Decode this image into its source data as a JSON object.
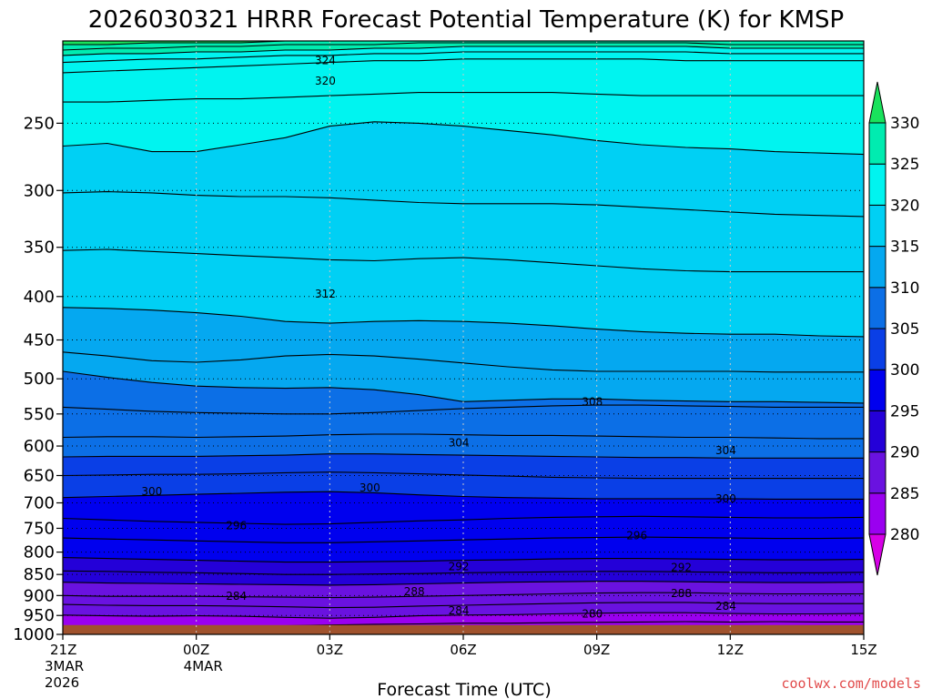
{
  "chart_data": {
    "type": "contour",
    "title": "2026030321 HRRR Forecast Potential Temperature (K) for KMSP",
    "xlabel": "Forecast Time (UTC)",
    "credit": "coolwx.com/models",
    "x_ticks": [
      {
        "hour": 0,
        "label": "21Z",
        "sub": [
          "3MAR",
          "2026"
        ]
      },
      {
        "hour": 3,
        "label": "00Z",
        "sub": [
          "4MAR"
        ]
      },
      {
        "hour": 6,
        "label": "03Z",
        "sub": []
      },
      {
        "hour": 9,
        "label": "06Z",
        "sub": []
      },
      {
        "hour": 12,
        "label": "09Z",
        "sub": []
      },
      {
        "hour": 15,
        "label": "12Z",
        "sub": []
      },
      {
        "hour": 18,
        "label": "15Z",
        "sub": []
      }
    ],
    "xlim": [
      0,
      18
    ],
    "ylim": [
      1000,
      200
    ],
    "y_ticks": [
      250,
      300,
      350,
      400,
      450,
      500,
      550,
      600,
      650,
      700,
      750,
      800,
      850,
      900,
      950,
      1000
    ],
    "colorbar": {
      "levels": [
        280,
        285,
        290,
        295,
        300,
        305,
        310,
        315,
        320,
        325,
        330
      ],
      "labels": [
        "280",
        "285",
        "290",
        "295",
        "300",
        "305",
        "310",
        "315",
        "320",
        "325",
        "330"
      ],
      "colors": [
        "#d600e6",
        "#9a00f0",
        "#6a12e0",
        "#2400d8",
        "#0000ee",
        "#0a3fe6",
        "#0c6fe6",
        "#05a8f0",
        "#00d0f4",
        "#00f4f0",
        "#00ecb0",
        "#19e25c"
      ]
    },
    "ground_color": "#a0522d",
    "surface_pressure": 975,
    "hours": [
      0,
      1,
      2,
      3,
      4,
      5,
      6,
      7,
      8,
      9,
      10,
      11,
      12,
      13,
      14,
      15,
      16,
      17,
      18
    ],
    "isentropes": [
      {
        "theta": 282,
        "p": [
          0,
          0,
          0,
          0,
          978,
          977,
          975,
          973,
          972,
          970,
          970,
          969,
          968,
          967,
          966,
          967,
          966,
          967,
          967
        ]
      },
      {
        "theta": 284,
        "p": [
          949,
          951,
          952,
          951,
          952,
          955,
          957,
          955,
          951,
          949,
          948,
          946,
          944,
          943,
          943,
          945,
          946,
          946,
          945
        ]
      },
      {
        "theta": 286,
        "p": [
          922,
          924,
          925,
          925,
          926,
          928,
          930,
          929,
          926,
          924,
          922,
          920,
          918,
          917,
          917,
          919,
          920,
          920,
          920
        ]
      },
      {
        "theta": 288,
        "p": [
          900,
          902,
          902,
          902,
          903,
          904,
          905,
          904,
          902,
          900,
          898,
          896,
          894,
          893,
          893,
          895,
          896,
          896,
          896
        ]
      },
      {
        "theta": 290,
        "p": [
          868,
          870,
          871,
          872,
          873,
          874,
          875,
          874,
          872,
          870,
          868,
          867,
          866,
          866,
          867,
          868,
          869,
          869,
          868
        ]
      },
      {
        "theta": 292,
        "p": [
          842,
          843,
          845,
          846,
          848,
          850,
          850,
          849,
          848,
          846,
          845,
          844,
          843,
          843,
          844,
          845,
          846,
          846,
          845
        ]
      },
      {
        "theta": 294,
        "p": [
          812,
          814,
          816,
          818,
          820,
          822,
          822,
          821,
          820,
          818,
          817,
          815,
          814,
          814,
          815,
          816,
          817,
          817,
          816
        ]
      },
      {
        "theta": 296,
        "p": [
          770,
          772,
          774,
          776,
          778,
          780,
          780,
          778,
          776,
          774,
          772,
          770,
          769,
          768,
          769,
          770,
          771,
          771,
          770
        ]
      },
      {
        "theta": 298,
        "p": [
          730,
          733,
          736,
          738,
          740,
          742,
          741,
          738,
          735,
          733,
          730,
          728,
          727,
          726,
          727,
          728,
          729,
          729,
          728
        ]
      },
      {
        "theta": 300,
        "p": [
          690,
          688,
          686,
          684,
          682,
          680,
          679,
          681,
          685,
          688,
          690,
          691,
          692,
          692,
          692,
          692,
          693,
          693,
          693
        ]
      },
      {
        "theta": 302,
        "p": [
          650,
          649,
          648,
          648,
          647,
          645,
          644,
          645,
          647,
          649,
          651,
          653,
          654,
          655,
          655,
          655,
          655,
          655,
          655
        ]
      },
      {
        "theta": 304,
        "p": [
          618,
          617,
          617,
          617,
          616,
          615,
          613,
          613,
          614,
          615,
          616,
          617,
          618,
          619,
          619,
          620,
          620,
          620,
          620
        ]
      },
      {
        "theta": 306,
        "p": [
          586,
          585,
          585,
          586,
          585,
          584,
          582,
          581,
          581,
          582,
          583,
          583,
          584,
          585,
          586,
          586,
          587,
          588,
          588
        ]
      },
      {
        "theta": 308,
        "p": [
          540,
          543,
          546,
          548,
          549,
          550,
          550,
          548,
          545,
          542,
          540,
          538,
          537,
          537,
          538,
          539,
          540,
          540,
          540
        ]
      },
      {
        "theta": 310,
        "p": [
          490,
          498,
          505,
          510,
          512,
          513,
          512,
          515,
          522,
          532,
          530,
          528,
          528,
          530,
          531,
          532,
          532,
          533,
          534
        ]
      },
      {
        "theta": 312,
        "p": [
          465,
          470,
          476,
          478,
          475,
          470,
          468,
          470,
          474,
          479,
          484,
          488,
          490,
          490,
          490,
          490,
          491,
          491,
          491
        ]
      },
      {
        "theta": 314,
        "p": [
          412,
          413,
          415,
          418,
          422,
          428,
          430,
          428,
          427,
          428,
          430,
          433,
          437,
          440,
          442,
          443,
          443,
          445,
          446
        ]
      },
      {
        "theta": 316,
        "p": [
          353,
          352,
          354,
          356,
          358,
          360,
          362,
          363,
          361,
          360,
          362,
          365,
          368,
          371,
          373,
          374,
          374,
          374,
          374
        ]
      },
      {
        "theta": 318,
        "p": [
          302,
          301,
          302,
          304,
          305,
          305,
          306,
          308,
          310,
          311,
          311,
          311,
          312,
          314,
          316,
          318,
          320,
          321,
          322
        ]
      },
      {
        "theta": 320,
        "p": [
          266,
          264,
          270,
          270,
          265,
          260,
          252,
          249,
          250,
          252,
          255,
          258,
          262,
          265,
          267,
          268,
          270,
          271,
          272
        ]
      },
      {
        "theta": 321,
        "p": [
          236,
          236,
          235,
          234,
          234,
          233,
          232,
          231,
          230,
          230,
          230,
          230,
          231,
          232,
          232,
          232,
          232,
          232,
          232
        ]
      },
      {
        "theta": 322,
        "p": [
          218,
          217,
          216,
          215,
          214,
          213,
          212,
          211,
          211,
          210,
          210,
          210,
          210,
          210,
          211,
          211,
          211,
          211,
          211
        ]
      },
      {
        "theta": 323,
        "p": [
          212,
          211,
          210,
          210,
          209,
          208,
          208,
          207,
          207,
          206,
          206,
          206,
          206,
          206,
          206,
          207,
          207,
          207,
          207
        ]
      },
      {
        "theta": 324,
        "p": [
          208,
          207,
          207,
          206,
          206,
          205,
          205,
          204,
          204,
          203,
          203,
          203,
          203,
          203,
          203,
          204,
          204,
          204,
          204
        ]
      },
      {
        "theta": 326,
        "p": [
          205,
          204,
          204,
          203,
          203,
          202,
          202,
          202,
          201,
          201,
          201,
          201,
          201,
          201,
          201,
          202,
          202,
          202,
          202
        ]
      },
      {
        "theta": 328,
        "p": [
          202,
          202,
          201,
          201,
          201,
          200,
          200,
          200,
          200,
          200,
          200,
          200,
          200,
          200,
          200,
          200,
          200,
          200,
          200
        ]
      }
    ],
    "contour_labels": [
      {
        "value": "324",
        "hour": 5.9,
        "p": 211
      },
      {
        "value": "320",
        "hour": 5.9,
        "p": 223
      },
      {
        "value": "312",
        "hour": 5.9,
        "p": 397
      },
      {
        "value": "308",
        "hour": 11.9,
        "p": 532
      },
      {
        "value": "304",
        "hour": 8.9,
        "p": 595
      },
      {
        "value": "304",
        "hour": 14.9,
        "p": 607
      },
      {
        "value": "300",
        "hour": 2.0,
        "p": 679
      },
      {
        "value": "300",
        "hour": 6.9,
        "p": 672
      },
      {
        "value": "300",
        "hour": 14.9,
        "p": 692
      },
      {
        "value": "296",
        "hour": 3.9,
        "p": 745
      },
      {
        "value": "296",
        "hour": 12.9,
        "p": 765
      },
      {
        "value": "292",
        "hour": 8.9,
        "p": 832
      },
      {
        "value": "292",
        "hour": 13.9,
        "p": 834
      },
      {
        "value": "288",
        "hour": 7.9,
        "p": 891
      },
      {
        "value": "288",
        "hour": 13.9,
        "p": 895
      },
      {
        "value": "284",
        "hour": 3.9,
        "p": 901
      },
      {
        "value": "284",
        "hour": 8.9,
        "p": 938
      },
      {
        "value": "284",
        "hour": 14.9,
        "p": 926
      },
      {
        "value": "280",
        "hour": 11.9,
        "p": 946
      }
    ]
  }
}
